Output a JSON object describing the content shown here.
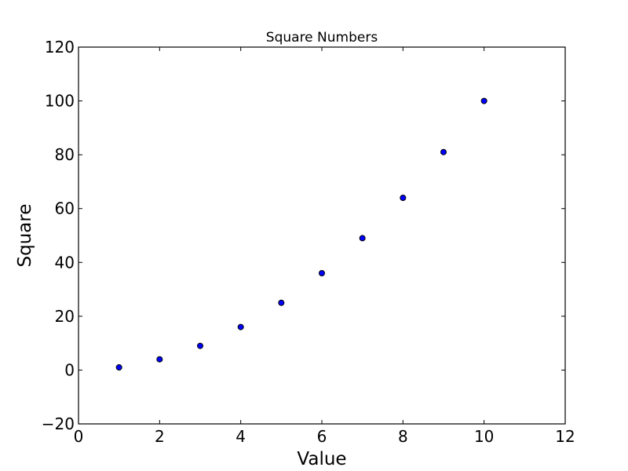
{
  "chart_data": {
    "type": "scatter",
    "title": "Square Numbers",
    "xlabel": "Value",
    "ylabel": "Square",
    "xlim": [
      0,
      12
    ],
    "ylim": [
      -20,
      120
    ],
    "xticks": [
      0,
      2,
      4,
      6,
      8,
      10,
      12
    ],
    "yticks": [
      -20,
      0,
      20,
      40,
      60,
      80,
      100,
      120
    ],
    "xtick_labels": [
      "0",
      "2",
      "4",
      "6",
      "8",
      "10",
      "12"
    ],
    "ytick_labels": [
      "−20",
      "0",
      "20",
      "40",
      "60",
      "80",
      "100",
      "120"
    ],
    "x": [
      1,
      2,
      3,
      4,
      5,
      6,
      7,
      8,
      9,
      10
    ],
    "y": [
      1,
      4,
      9,
      16,
      25,
      36,
      49,
      64,
      81,
      100
    ],
    "marker_color": "#0000ff",
    "marker_edge": "#000000",
    "grid": false
  }
}
